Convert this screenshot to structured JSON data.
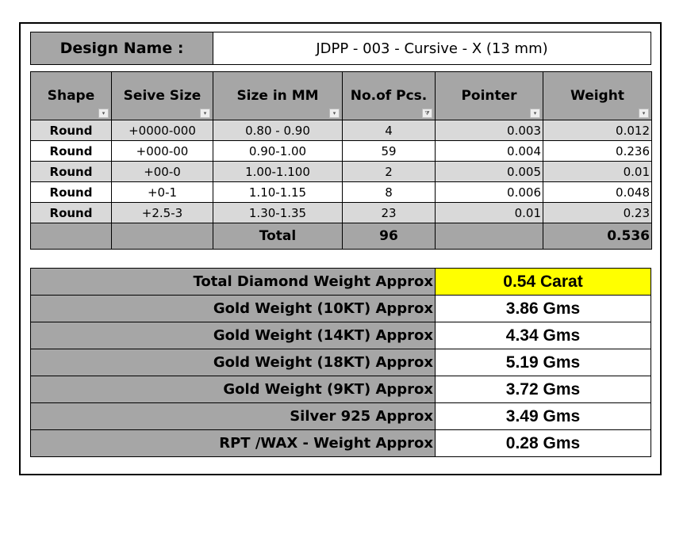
{
  "design": {
    "label": "Design Name :",
    "value": "JDPP - 003 - Cursive - X (13 mm)"
  },
  "columns": [
    "Shape",
    "Seive Size",
    "Size in MM",
    "No.of Pcs.",
    "Pointer",
    "Weight"
  ],
  "filter_icons": [
    "dropdown-icon",
    "dropdown-icon",
    "dropdown-icon",
    "filter-icon",
    "dropdown-icon",
    "dropdown-icon"
  ],
  "rows": [
    [
      "Round",
      "+0000-000",
      "0.80 - 0.90",
      "4",
      "0.003",
      "0.012"
    ],
    [
      "Round",
      "+000-00",
      "0.90-1.00",
      "59",
      "0.004",
      "0.236"
    ],
    [
      "Round",
      "+00-0",
      "1.00-1.100",
      "2",
      "0.005",
      "0.01"
    ],
    [
      "Round",
      "+0-1",
      "1.10-1.15",
      "8",
      "0.006",
      "0.048"
    ],
    [
      "Round",
      "+2.5-3",
      "1.30-1.35",
      "23",
      "0.01",
      "0.23"
    ]
  ],
  "total": {
    "label": "Total",
    "pcs": "96",
    "weight": "0.536"
  },
  "summary": [
    {
      "label": "Total Diamond Weight Approx",
      "value": "0.54 Carat",
      "highlight": "#ffff00"
    },
    {
      "label": "Gold Weight (10KT) Approx",
      "value": "3.86 Gms"
    },
    {
      "label": "Gold Weight (14KT) Approx",
      "value": "4.34 Gms"
    },
    {
      "label": "Gold Weight (18KT) Approx",
      "value": "5.19 Gms"
    },
    {
      "label": "Gold Weight (9KT) Approx",
      "value": "3.72 Gms"
    },
    {
      "label": "Silver 925 Approx",
      "value": "3.49 Gms"
    },
    {
      "label": "RPT /WAX - Weight Approx",
      "value": "0.28 Gms"
    }
  ],
  "colors": {
    "header": "#a6a6a6",
    "band": "#d9d9d9",
    "highlight": "#ffff00"
  }
}
